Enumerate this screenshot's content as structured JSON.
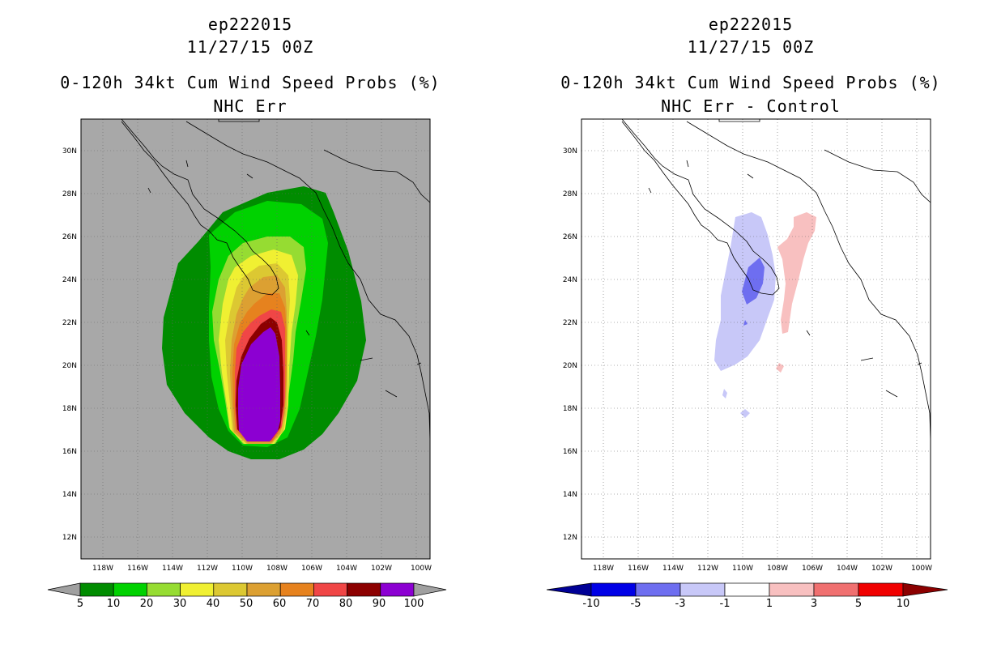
{
  "panels": [
    {
      "storm_id": "ep222015",
      "datetime": "11/27/15 00Z",
      "title": "0-120h 34kt Cum Wind Speed Probs (%)",
      "subtitle": "NHC Err",
      "colorbar": {
        "labels": [
          "5",
          "10",
          "20",
          "30",
          "40",
          "50",
          "60",
          "70",
          "80",
          "90",
          "100"
        ],
        "colors": [
          "#008c00",
          "#00d200",
          "#96dc32",
          "#f0f032",
          "#dcc832",
          "#dca032",
          "#e6821e",
          "#f04646",
          "#8c0000",
          "#8c00d2"
        ],
        "end_low": "#a0a0a0",
        "end_high": "#a0a0a0"
      },
      "background": "#a8a8a8"
    },
    {
      "storm_id": "ep222015",
      "datetime": "11/27/15 00Z",
      "title": "0-120h 34kt Cum Wind Speed Probs (%)",
      "subtitle": "NHC Err - Control",
      "colorbar": {
        "labels": [
          "-10",
          "-5",
          "-3",
          "-1",
          "1",
          "3",
          "5",
          "10"
        ],
        "colors": [
          "#0000e6",
          "#6e6ef0",
          "#c8c8f8",
          "#ffffff",
          "#f8c0c0",
          "#f07070",
          "#f00000"
        ],
        "end_low": "#000096",
        "end_high": "#8c0000"
      },
      "background": "#ffffff"
    }
  ],
  "axes": {
    "lon_labels": [
      "118W",
      "116W",
      "114W",
      "112W",
      "110W",
      "108W",
      "106W",
      "104W",
      "102W",
      "100W"
    ],
    "lat_labels": [
      "30N",
      "28N",
      "26N",
      "24N",
      "22N",
      "20N",
      "18N",
      "16N",
      "14N",
      "12N"
    ]
  }
}
